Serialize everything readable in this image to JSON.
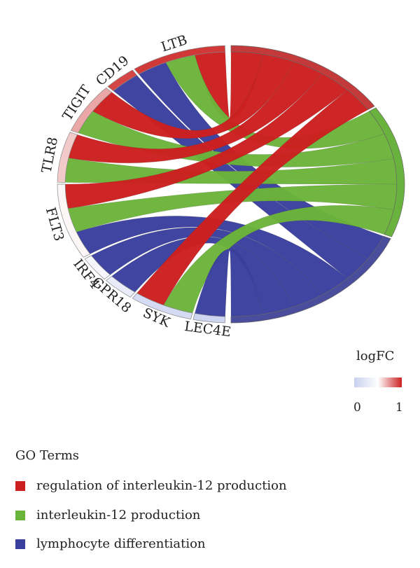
{
  "diagram": {
    "genes": [
      "LTB",
      "CD19",
      "TIGIT",
      "TLR8",
      "FLT3",
      "IRF4",
      "GPR18",
      "SYK",
      "LEC4E"
    ],
    "gene_logfc": [
      0.95,
      0.92,
      0.7,
      0.62,
      0.52,
      0.42,
      0.3,
      0.12,
      0.05
    ],
    "terms": [
      {
        "name": "regulation of interleukin-12 production",
        "color": "#cc1f1f",
        "band_color": "#c43a3a"
      },
      {
        "name": "interleukin-12 production",
        "color": "#6bb43a",
        "band_color": "#6ab23e"
      },
      {
        "name": "lymphocyte differentiation",
        "color": "#3a3f9e",
        "band_color": "#4a4d9c"
      }
    ],
    "links": [
      {
        "gene": "LTB",
        "term": 0
      },
      {
        "gene": "LTB",
        "term": 1
      },
      {
        "gene": "LTB",
        "term": 2
      },
      {
        "gene": "CD19",
        "term": 2
      },
      {
        "gene": "TIGIT",
        "term": 0
      },
      {
        "gene": "TIGIT",
        "term": 1
      },
      {
        "gene": "TLR8",
        "term": 0
      },
      {
        "gene": "TLR8",
        "term": 1
      },
      {
        "gene": "FLT3",
        "term": 0
      },
      {
        "gene": "FLT3",
        "term": 1
      },
      {
        "gene": "FLT3",
        "term": 2
      },
      {
        "gene": "IRF4",
        "term": 2
      },
      {
        "gene": "GPR18",
        "term": 2
      },
      {
        "gene": "SYK",
        "term": 0
      },
      {
        "gene": "SYK",
        "term": 1
      },
      {
        "gene": "LEC4E",
        "term": 2
      }
    ]
  },
  "logfc_legend": {
    "title": "logFC",
    "min_label": "0",
    "max_label": "1",
    "low_color": "#c8d0ee",
    "mid_color": "#ffffff",
    "high_color": "#cc2222"
  },
  "legend": {
    "title": "GO Terms",
    "items": [
      {
        "label": "regulation of interleukin-12 production",
        "color": "#cc1f1f"
      },
      {
        "label": "interleukin-12 production",
        "color": "#6bb43a"
      },
      {
        "label": "lymphocyte differentiation",
        "color": "#3a3f9e"
      }
    ]
  }
}
